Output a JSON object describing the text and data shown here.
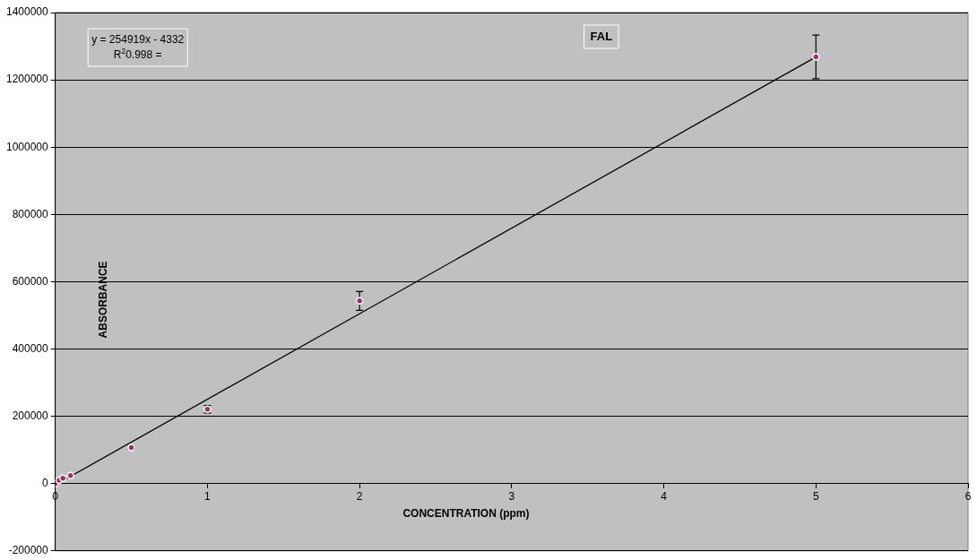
{
  "chart_data": {
    "type": "scatter",
    "title": "FAL",
    "xlabel": "CONCENTRATION (ppm)",
    "ylabel": "ABSORBANCE",
    "annotations": [
      "y = 254919x - 4332",
      "R$^{2}$0.998 ="
    ],
    "xlim": [
      0,
      6
    ],
    "xticks": [
      0,
      1,
      2,
      3,
      4,
      5,
      6
    ],
    "ylim": [
      -200000,
      1400000
    ],
    "yticks": [
      -200000,
      0,
      200000,
      400000,
      600000,
      800000,
      1000000,
      1200000,
      1400000
    ],
    "grid": "y",
    "legend": false,
    "series": [
      {
        "marker": "circle",
        "color": "#993366",
        "x": [
          0,
          0.025,
          0.05,
          0.1,
          0.5,
          1,
          2,
          5
        ],
        "values": [
          0,
          10000,
          16000,
          24000,
          107000,
          221000,
          543000,
          1268000
        ],
        "errors": [
          null,
          null,
          null,
          null,
          4000,
          11000,
          28000,
          65000
        ]
      },
      {
        "type": "line",
        "marker": "none",
        "color": "#000000",
        "x": [
          0,
          5
        ],
        "values": [
          -4000,
          1268000
        ]
      }
    ]
  }
}
